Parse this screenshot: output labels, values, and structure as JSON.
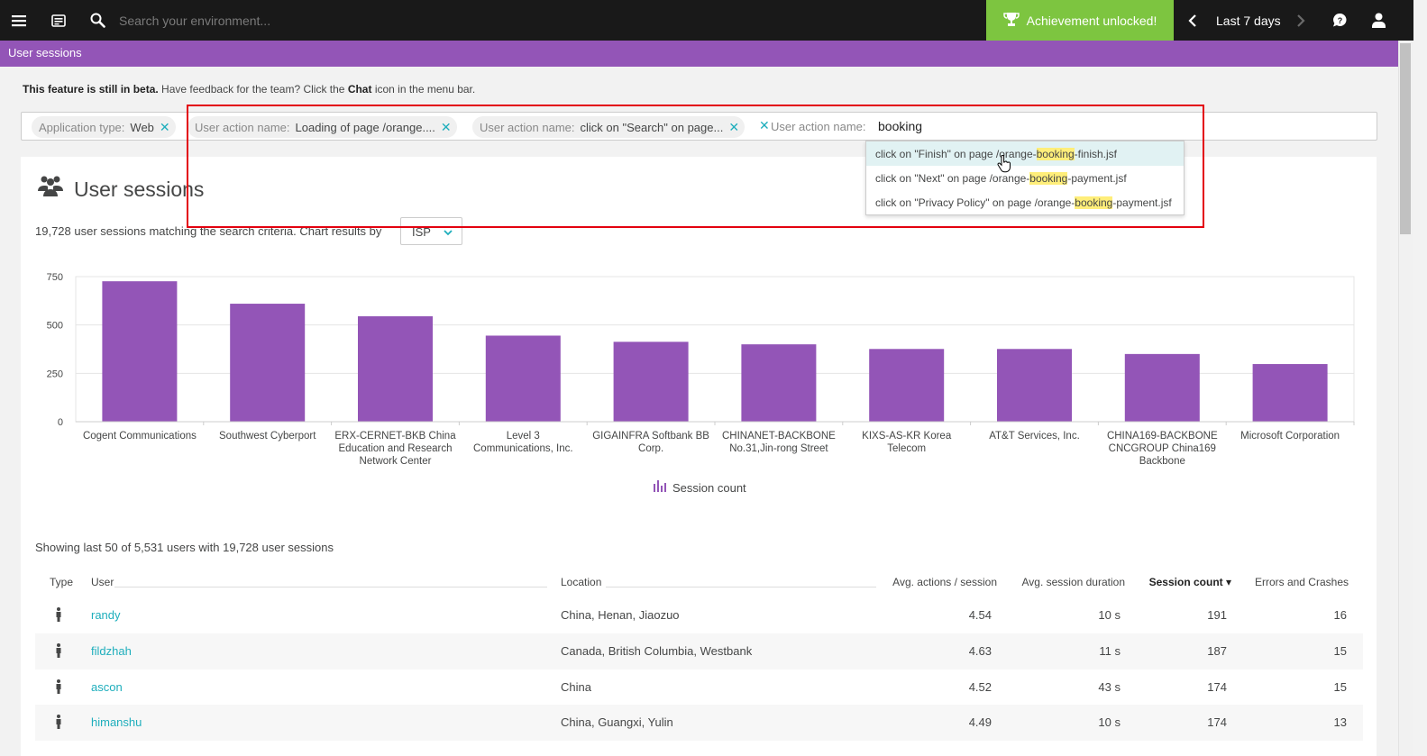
{
  "topbar": {
    "search_placeholder": "Search your environment...",
    "achievement_label": "Achievement unlocked!",
    "timeframe_label": "Last 7 days"
  },
  "header": {
    "title": "User sessions"
  },
  "beta_notice": {
    "bold": "This feature is still in beta.",
    "text1": " Have feedback for the team? Click the ",
    "chat_word": "Chat",
    "text2": " icon in the menu bar."
  },
  "filters": {
    "chips": [
      {
        "key": "Application type:",
        "value": "Web"
      },
      {
        "key": "User action name:",
        "value": "Loading of page /orange...."
      },
      {
        "key": "User action name:",
        "value": "click on \"Search\" on page..."
      }
    ],
    "active_key": "User action name:",
    "typed_value": "booking"
  },
  "suggestions": [
    {
      "pre": "click on \"Finish\" on page /orange-",
      "match": "booking",
      "post": "-finish.jsf"
    },
    {
      "pre": "click on \"Next\" on page /orange-",
      "match": "booking",
      "post": "-payment.jsf"
    },
    {
      "pre": "click on \"Privacy Policy\" on page /orange-",
      "match": "booking",
      "post": "-payment.jsf"
    }
  ],
  "panel": {
    "title": "User sessions",
    "match_text": "19,728 user sessions matching the search criteria. Chart results by",
    "chart_by": "ISP"
  },
  "colors": {
    "bar": "#9355b7",
    "link": "#1eaebc",
    "achievement": "#7dc540",
    "header": "#9355b7"
  },
  "chart_data": {
    "type": "bar",
    "categories": [
      [
        "Cogent Communications"
      ],
      [
        "Southwest Cyberport"
      ],
      [
        "ERX-CERNET-BKB China",
        "Education and Research",
        "Network Center"
      ],
      [
        "Level 3",
        "Communications, Inc."
      ],
      [
        "GIGAINFRA Softbank BB",
        "Corp."
      ],
      [
        "CHINANET-BACKBONE",
        "No.31,Jin-rong Street"
      ],
      [
        "KIXS-AS-KR Korea",
        "Telecom"
      ],
      [
        "AT&T Services, Inc."
      ],
      [
        "CHINA169-BACKBONE",
        "CNCGROUP China169",
        "Backbone"
      ],
      [
        "Microsoft Corporation"
      ]
    ],
    "values": [
      726,
      610,
      545,
      445,
      413,
      400,
      376,
      376,
      350,
      298
    ],
    "yticks": [
      "750",
      "500",
      "250",
      "0"
    ],
    "ylim": [
      0,
      750
    ],
    "legend": "Session count",
    "grid": true
  },
  "table": {
    "showing": "Showing last 50 of 5,531 users with 19,728 user sessions",
    "headers": {
      "type": "Type",
      "user": "User",
      "location": "Location",
      "actions": "Avg. actions / session",
      "duration": "Avg. session duration",
      "count": "Session count ▾",
      "errors": "Errors and Crashes"
    },
    "rows": [
      {
        "user": "randy",
        "location": "China, Henan, Jiaozuo",
        "actions": "4.54",
        "duration": "10 s",
        "count": "191",
        "errors": "16"
      },
      {
        "user": "fildzhah",
        "location": "Canada, British Columbia, Westbank",
        "actions": "4.63",
        "duration": "11 s",
        "count": "187",
        "errors": "15"
      },
      {
        "user": "ascon",
        "location": "China",
        "actions": "4.52",
        "duration": "43 s",
        "count": "174",
        "errors": "15"
      },
      {
        "user": "himanshu",
        "location": "China, Guangxi, Yulin",
        "actions": "4.49",
        "duration": "10 s",
        "count": "174",
        "errors": "13"
      }
    ]
  }
}
